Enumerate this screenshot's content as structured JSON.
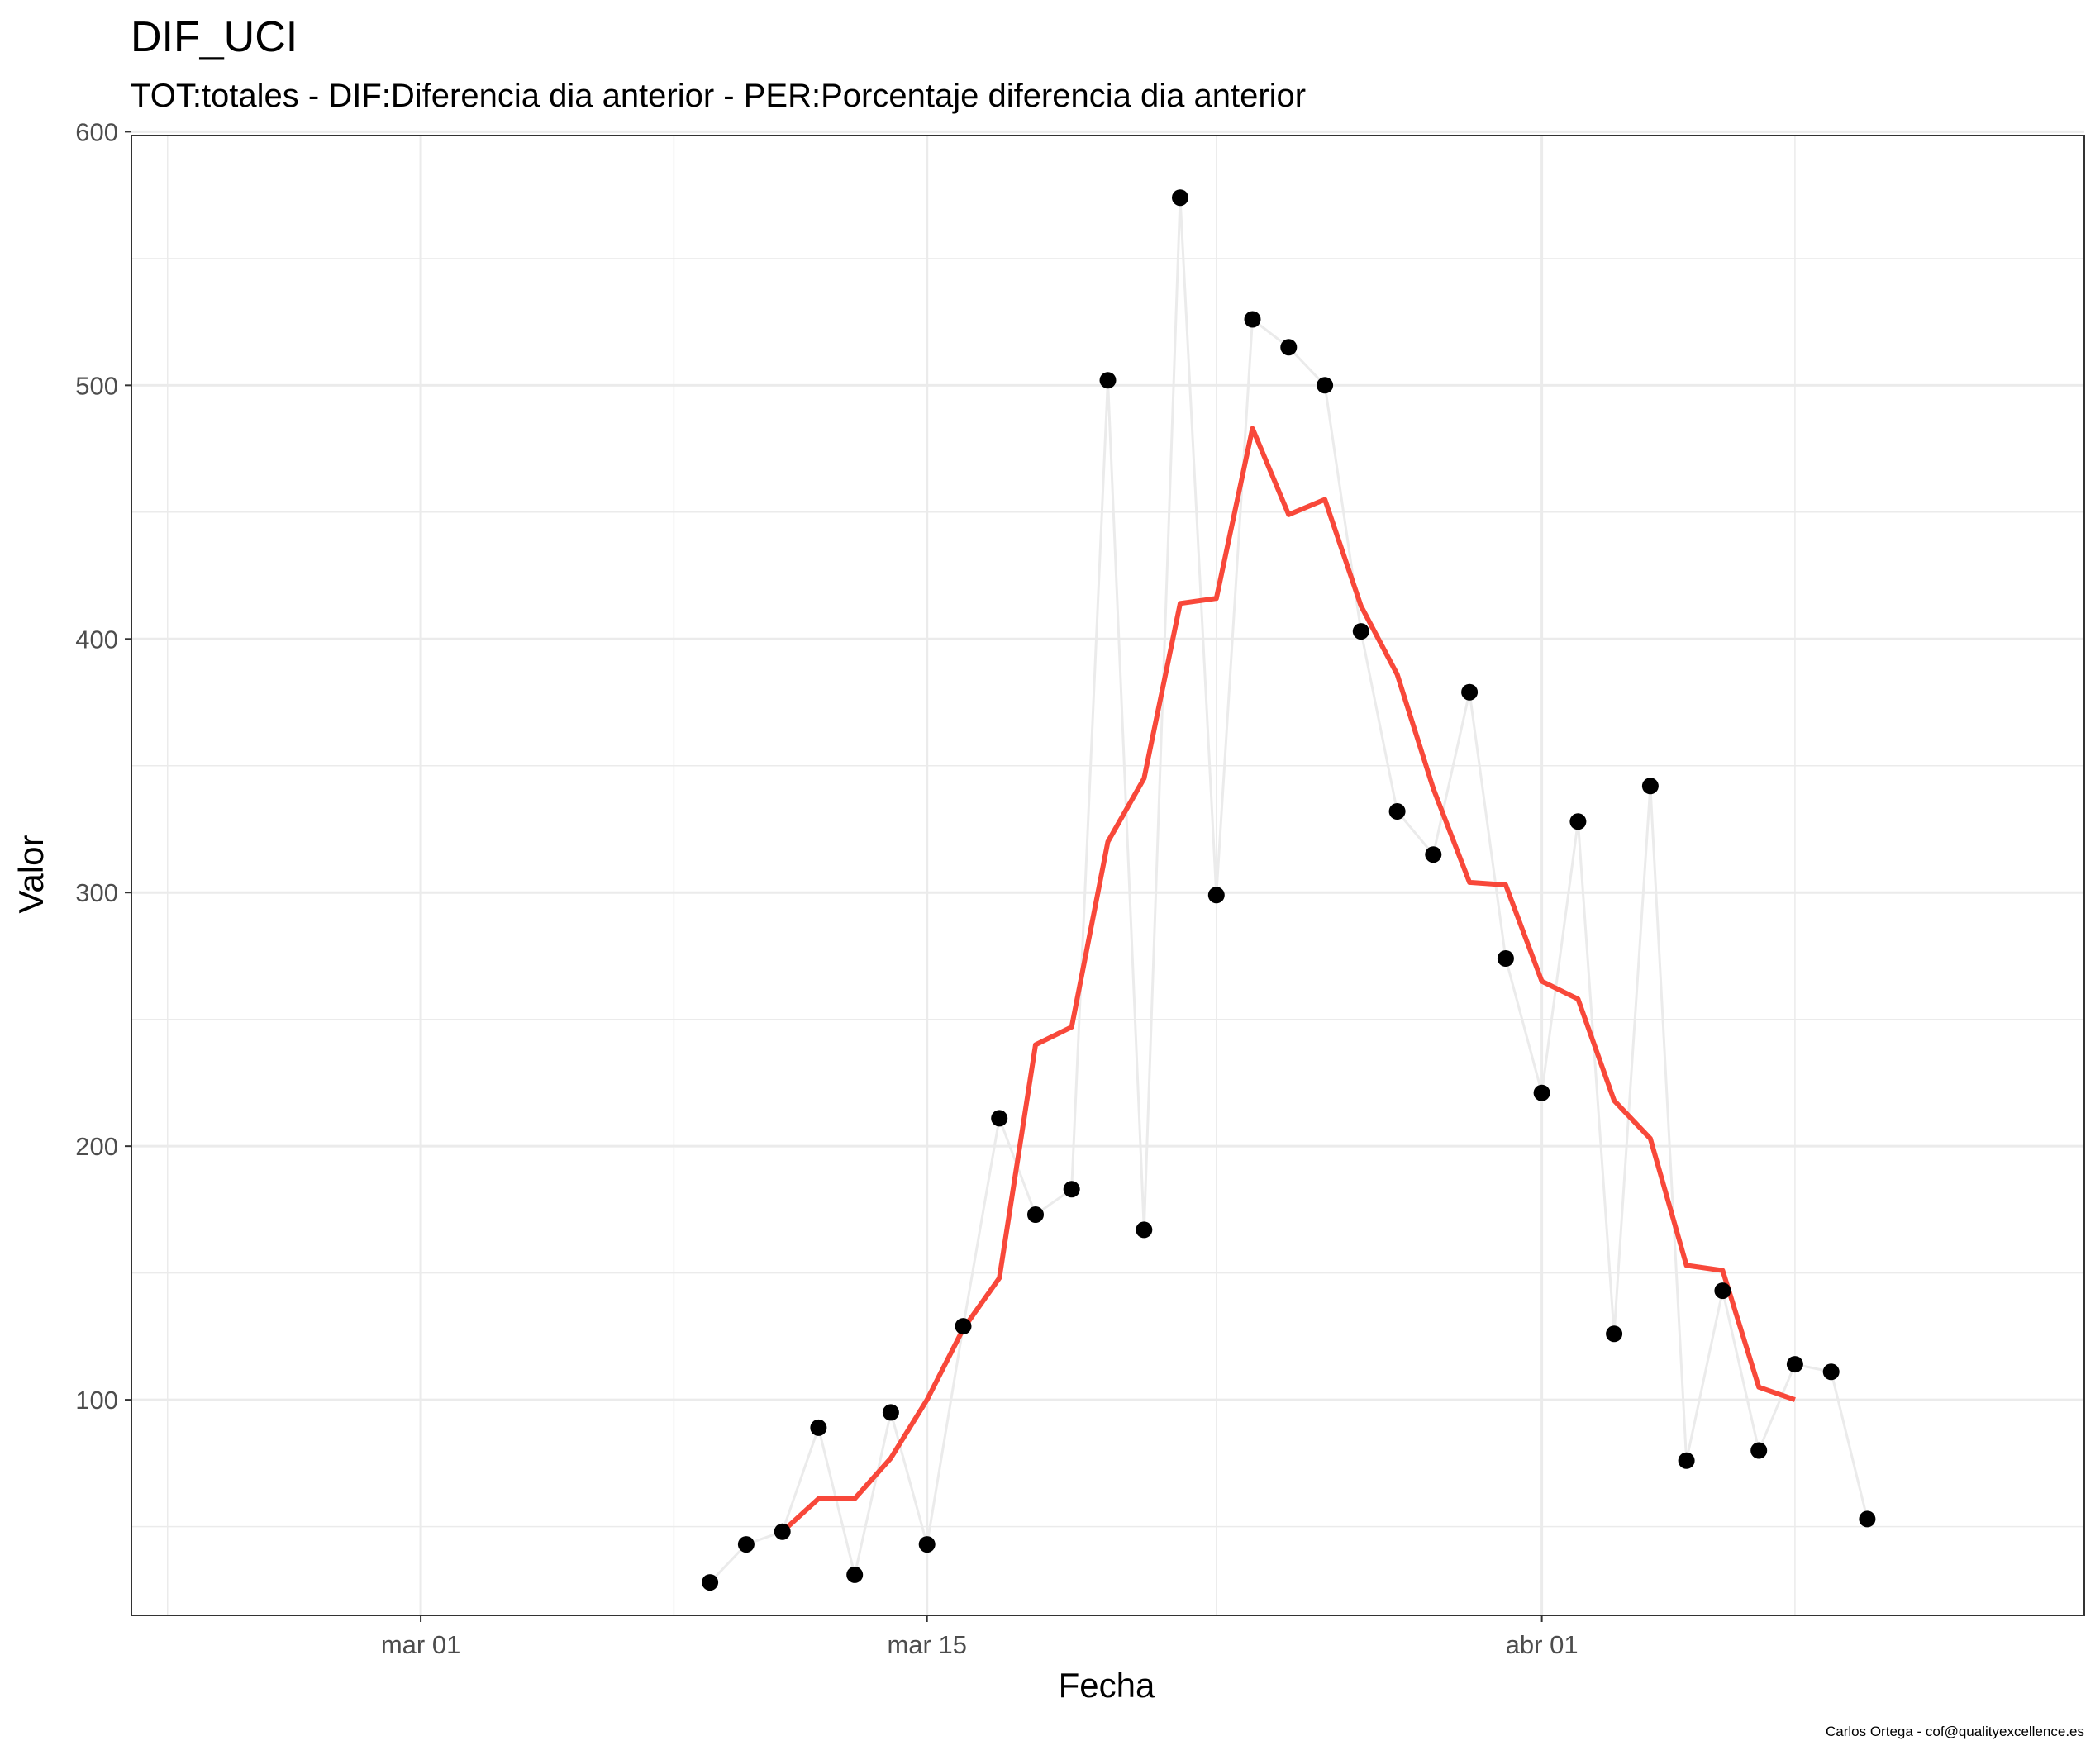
{
  "chart_data": {
    "type": "line",
    "title": "DIF_UCI",
    "subtitle": "TOT:totales - DIF:Diferencia dia anterior - PER:Porcentaje diferencia dia anterior",
    "xlabel": "Fecha",
    "ylabel": "Valor",
    "caption": "Carlos Ortega - cof@qualityexcellence.es",
    "x_ticks": [
      "mar 01",
      "mar 15",
      "abr 01"
    ],
    "y_ticks": [
      100,
      200,
      300,
      400,
      500,
      600
    ],
    "xlim": [
      "2020-02-22",
      "2020-04-16"
    ],
    "ylim": [
      0,
      600
    ],
    "grid": true,
    "colors": {
      "points": "#000000",
      "connector": "#ebebeb",
      "rolling_mean": "#f8483a",
      "grid": "#ebebeb",
      "panel_border": "#333333"
    },
    "series": [
      {
        "type": "points",
        "x": [
          "2020-03-09",
          "2020-03-10",
          "2020-03-11",
          "2020-03-12",
          "2020-03-13",
          "2020-03-14",
          "2020-03-15",
          "2020-03-16",
          "2020-03-17",
          "2020-03-18",
          "2020-03-19",
          "2020-03-20",
          "2020-03-21",
          "2020-03-22",
          "2020-03-23",
          "2020-03-24",
          "2020-03-25",
          "2020-03-26",
          "2020-03-27",
          "2020-03-28",
          "2020-03-29",
          "2020-03-30",
          "2020-03-31",
          "2020-04-01",
          "2020-04-02",
          "2020-04-03",
          "2020-04-04",
          "2020-04-05",
          "2020-04-06",
          "2020-04-07",
          "2020-04-08",
          "2020-04-09",
          "2020-04-10"
        ],
        "values": [
          28,
          43,
          48,
          89,
          31,
          95,
          43,
          129,
          211,
          173,
          183,
          502,
          167,
          574,
          299,
          526,
          515,
          500,
          403,
          332,
          315,
          379,
          274,
          221,
          328,
          126,
          342,
          76,
          143,
          80,
          114,
          111,
          53
        ]
      },
      {
        "type": "line",
        "x": [
          "2020-03-11",
          "2020-03-12",
          "2020-03-13",
          "2020-03-14",
          "2020-03-15",
          "2020-03-16",
          "2020-03-17",
          "2020-03-18",
          "2020-03-19",
          "2020-03-20",
          "2020-03-21",
          "2020-03-22",
          "2020-03-23",
          "2020-03-24",
          "2020-03-25",
          "2020-03-26",
          "2020-03-27",
          "2020-03-28",
          "2020-03-29",
          "2020-03-30",
          "2020-03-31",
          "2020-04-01",
          "2020-04-02",
          "2020-04-03",
          "2020-04-04",
          "2020-04-05",
          "2020-04-06",
          "2020-04-07",
          "2020-04-08"
        ],
        "values": [
          48,
          61,
          61,
          77,
          100,
          128,
          148,
          240,
          247,
          320,
          345,
          414,
          416,
          483,
          449,
          455,
          413,
          386,
          341,
          304,
          303,
          265,
          258,
          218,
          203,
          153,
          151,
          105,
          100
        ]
      }
    ]
  }
}
